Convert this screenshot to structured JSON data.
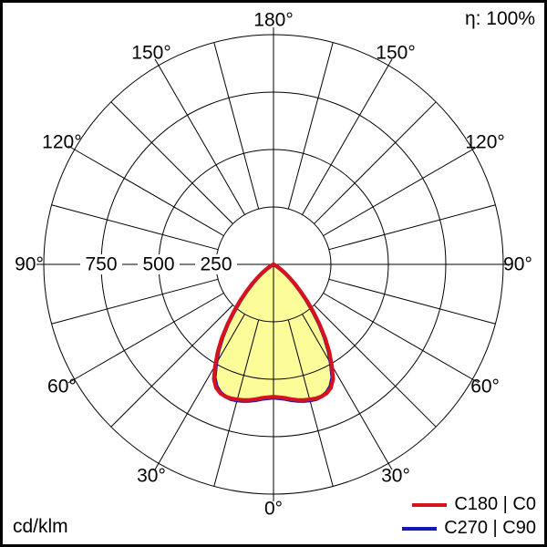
{
  "chart_data": {
    "type": "polar",
    "subtype": "photometric-intensity-distribution",
    "units_label": "cd/klm",
    "efficiency_label": "η: 100%",
    "angle_unit": "°",
    "angle_labels_deg": [
      0,
      30,
      60,
      90,
      120,
      150,
      180
    ],
    "radial_ticks": [
      250,
      500,
      750
    ],
    "radial_max": 1000,
    "grid_color": "#000000",
    "fill_color": "#fcfc99",
    "background_color": "#ffffff",
    "series": [
      {
        "name": "C180 | C0",
        "color": "#d5121e",
        "gamma_deg": [
          0,
          2.5,
          5,
          7.5,
          10,
          12.5,
          15,
          17.5,
          20,
          22.5,
          25,
          27.5,
          30,
          32.5,
          35,
          37.5,
          40,
          42.5,
          45,
          47.5,
          50,
          52.5,
          55,
          57.5,
          60,
          62.5,
          65,
          70,
          75,
          80,
          85,
          90
        ],
        "values": [
          576,
          579,
          584,
          592,
          599,
          605,
          609,
          612,
          612,
          607,
          592,
          562,
          507,
          452,
          392,
          330,
          270,
          216,
          168,
          128,
          94,
          66,
          44,
          27,
          14,
          5,
          0,
          0,
          0,
          0,
          0,
          0
        ]
      },
      {
        "name": "C270 | C90",
        "color": "#1518b0",
        "gamma_deg": [
          0,
          2.5,
          5,
          7.5,
          10,
          12.5,
          15,
          17.5,
          20,
          22.5,
          25,
          27.5,
          30,
          32.5,
          35,
          37.5,
          40,
          42.5,
          45,
          47.5,
          50,
          52.5,
          55,
          57.5,
          60,
          62.5,
          65,
          70,
          75,
          80,
          85,
          90
        ],
        "values": [
          580,
          583,
          588,
          596,
          603,
          609,
          613,
          615,
          612,
          604,
          586,
          555,
          500,
          446,
          386,
          325,
          265,
          212,
          164,
          125,
          91,
          64,
          42,
          25,
          13,
          4,
          0,
          0,
          0,
          0,
          0,
          0
        ]
      }
    ]
  }
}
